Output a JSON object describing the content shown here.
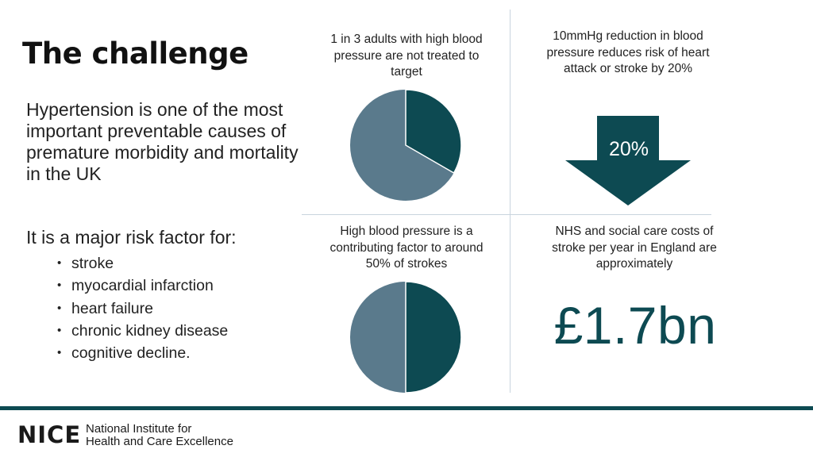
{
  "slide": {
    "title": "The challenge",
    "intro": "Hypertension is one of the most important preventable causes of premature morbidity and mortality in the UK",
    "risk_heading": "It is a major risk factor for:",
    "risk_factors": [
      "stroke",
      "myocardial infarction",
      "heart failure",
      "chronic kidney disease",
      "cognitive decline."
    ]
  },
  "stats": {
    "adults_untreated": "1 in 3 adults with high blood pressure are not treated to target",
    "bp_reduction": "10mmHg reduction in blood pressure reduces risk of heart attack or stroke by 20%",
    "stroke_factor": "High blood pressure is a contributing factor to around 50% of strokes",
    "nhs_costs": "NHS and social care costs of stroke per year in England are approximately",
    "arrow_label": "20%",
    "cost_value": "£1.7bn"
  },
  "charts": {
    "untreated_fraction": 0.3333,
    "stroke_fraction": 0.5,
    "colors": {
      "highlight": "#0d4a52",
      "rest": "#5a7a8c"
    }
  },
  "footer": {
    "logo": "NICE",
    "org_line1": "National Institute for",
    "org_line2": "Health and Care Excellence"
  }
}
